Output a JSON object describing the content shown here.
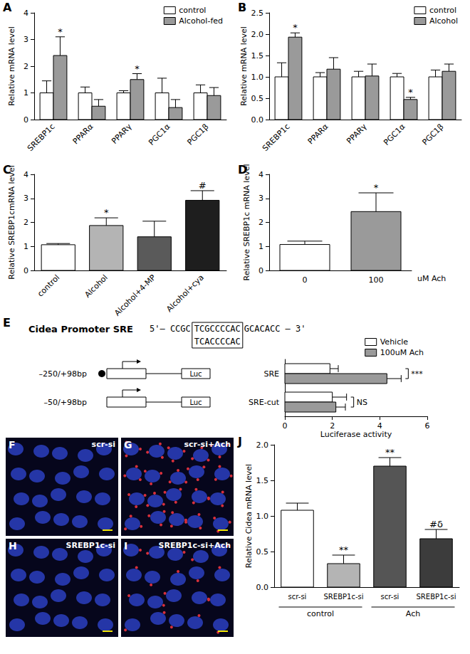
{
  "chart_data": [
    {
      "panel_label": "A",
      "type": "bar",
      "y_label": "Relative mRNA level",
      "categories": [
        "SREBP1c",
        "PPARα",
        "PPARγ",
        "PGC1α",
        "PGC1β"
      ],
      "ylim": [
        0,
        4
      ],
      "yticks": [
        0,
        1,
        2,
        3,
        4
      ],
      "legend": "upper right",
      "series": [
        {
          "name": "control",
          "color": "#ffffff",
          "values": [
            1,
            1,
            1,
            1,
            1
          ],
          "errors": [
            0.45,
            0.22,
            0.08,
            0.55,
            0.3
          ],
          "annotations": [
            null,
            null,
            null,
            null,
            null
          ]
        },
        {
          "name": "Alcohol-fed",
          "color": "#9a9a9a",
          "values": [
            2.4,
            0.5,
            1.5,
            0.45,
            0.9
          ],
          "errors": [
            0.7,
            0.25,
            0.22,
            0.3,
            0.3
          ],
          "annotations": [
            "*",
            null,
            "*",
            null,
            null
          ]
        }
      ]
    },
    {
      "panel_label": "B",
      "type": "bar",
      "y_label": "Relative mRNA level",
      "categories": [
        "SREBP1c",
        "PPARα",
        "PPARγ",
        "PGC1α",
        "PGC1β"
      ],
      "ylim": [
        0,
        2.5
      ],
      "yticks": [
        {
          "value": 0,
          "label": "0.0"
        },
        {
          "value": 0.5,
          "label": "0.5"
        },
        {
          "value": 1,
          "label": "1.0"
        },
        {
          "value": 1.5,
          "label": "1.5"
        },
        {
          "value": 2,
          "label": "2.0"
        },
        {
          "value": 2.5,
          "label": "2.5"
        }
      ],
      "legend": "upper right",
      "series": [
        {
          "name": "control",
          "color": "#ffffff",
          "values": [
            1,
            1,
            1,
            1,
            1
          ],
          "errors": [
            0.33,
            0.1,
            0.13,
            0.08,
            0.16
          ],
          "annotations": [
            null,
            null,
            null,
            null,
            null
          ]
        },
        {
          "name": "Alcohol",
          "color": "#9a9a9a",
          "values": [
            1.93,
            1.18,
            1.02,
            0.47,
            1.13
          ],
          "errors": [
            0.1,
            0.27,
            0.28,
            0.05,
            0.17
          ],
          "annotations": [
            "*",
            null,
            null,
            "*",
            null
          ]
        }
      ]
    },
    {
      "panel_label": "C",
      "type": "bar",
      "y_label": "Relative SREBP1cmRNA level",
      "categories": [
        "control",
        "Alcohol",
        "Alcohol+4-MP",
        "Alcohol+cya"
      ],
      "ylim": [
        0,
        4
      ],
      "yticks": [
        0,
        1,
        2,
        3,
        4
      ],
      "series": [
        {
          "colors": [
            "#ffffff",
            "#b4b4b4",
            "#5a5a5a",
            "#1e1e1e"
          ],
          "values": [
            1.07,
            1.87,
            1.4,
            2.92
          ],
          "errors": [
            0.05,
            0.32,
            0.65,
            0.4
          ],
          "annotations": [
            null,
            "*",
            null,
            "#"
          ]
        }
      ]
    },
    {
      "panel_label": "D",
      "type": "bar",
      "y_label": "Relative SREBP1c mRNA level",
      "x_label": "uM Ach",
      "categories": [
        "0",
        "100"
      ],
      "ylim": [
        0,
        4
      ],
      "yticks": [
        0,
        1,
        2,
        3,
        4
      ],
      "series": [
        {
          "colors": [
            "#ffffff",
            "#9a9a9a"
          ],
          "values": [
            1.08,
            2.45
          ],
          "errors": [
            0.14,
            0.78
          ],
          "annotations": [
            null,
            "*"
          ]
        }
      ]
    },
    {
      "type": "bar",
      "orientation": "horizontal",
      "x_label": "Luciferase activity",
      "categories": [
        "SRE",
        "SRE-cut"
      ],
      "xlim": [
        0,
        6
      ],
      "xticks": [
        0,
        2,
        4,
        6
      ],
      "legend": "upper right",
      "series": [
        {
          "name": "Vehicle",
          "color": "#ffffff",
          "values": [
            1.9,
            2.0
          ],
          "errors": [
            0.35,
            0.6
          ]
        },
        {
          "name": "100uM Ach",
          "color": "#9a9a9a",
          "values": [
            4.3,
            2.15
          ],
          "errors": [
            0.6,
            0.4
          ]
        }
      ],
      "comparisons": [
        {
          "category": "SRE",
          "label": "***"
        },
        {
          "category": "SRE-cut",
          "label": "NS"
        }
      ]
    },
    {
      "panel_label": "J",
      "type": "bar",
      "y_label": "Relative Cidea mRNA level",
      "categories": [
        "scr-si",
        "SREBP1c-si",
        "scr-si",
        "SREBP1c-si"
      ],
      "ylim": [
        0,
        2
      ],
      "yticks": [
        {
          "value": 0,
          "label": "0.0"
        },
        {
          "value": 0.5,
          "label": "0.5"
        },
        {
          "value": 1,
          "label": "1.0"
        },
        {
          "value": 1.5,
          "label": "1.5"
        },
        {
          "value": 2,
          "label": "2.0"
        }
      ],
      "series": [
        {
          "colors": [
            "#ffffff",
            "#b4b4b4",
            "#555555",
            "#3c3c3c"
          ],
          "values": [
            1.08,
            0.33,
            1.7,
            0.68
          ],
          "errors": [
            0.1,
            0.12,
            0.12,
            0.13
          ],
          "annotations": [
            null,
            "**",
            "**",
            "#δ"
          ]
        }
      ],
      "groups": [
        {
          "label": "control",
          "size": 2
        },
        {
          "label": "Ach",
          "size": 2
        }
      ]
    }
  ],
  "diagram": {
    "panel_label": "E",
    "title": "Cidea Promoter SRE",
    "sequence_left": "5'— CCGC",
    "sequence_sre": "TCGCCCCAC",
    "sequence_right": "GCACACC — 3'",
    "mutant": "TCACCCCAC",
    "reporter": "Luc",
    "constructs": [
      {
        "label": "–250/+98bp",
        "sre": true
      },
      {
        "label": "–50/+98bp",
        "sre": false
      }
    ]
  },
  "images": [
    {
      "panel_label": "F",
      "label": "scr-si"
    },
    {
      "panel_label": "G",
      "label": "scr-si+Ach"
    },
    {
      "panel_label": "H",
      "label": "SREBP1c-si"
    },
    {
      "panel_label": "I",
      "label": "SREBP1c-si+Ach"
    }
  ]
}
